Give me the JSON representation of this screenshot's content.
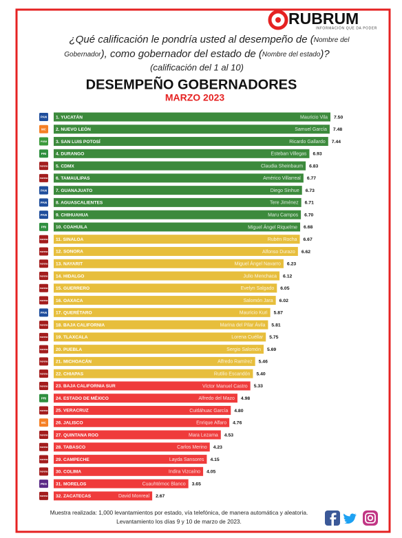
{
  "header": {
    "logo": {
      "name": "RUBRUM",
      "tagline": "INFORMACIÓN QUE DA PODER"
    },
    "question_lines": [
      [
        "¿Qué calificación le pondría usted al desempeño de (",
        "Nombre del"
      ],
      [
        "Gobernador",
        "), como gobernador del estado de (",
        "Nombre del estado",
        ")?"
      ]
    ],
    "scale_note": "(calificación del 1 al 10)"
  },
  "chart_data": {
    "type": "bar",
    "orientation": "horizontal",
    "title": "DESEMPEÑO GOBERNADORES",
    "subtitle": "MARZO 2023",
    "categories": [
      "1. YUCATÁN",
      "2. NUEVO LEÓN",
      "3. SAN LUIS POTOSÍ",
      "4. DURANGO",
      "5. CDMX",
      "6. TAMAULIPAS",
      "7. GUANAJUATO",
      "8. AGUASCALIENTES",
      "9. CHIHUAHUA",
      "10. COAHUILA",
      "11. SINALOA",
      "12. SONORA",
      "13. NAYARIT",
      "14. HIDALGO",
      "15. GUERRERO",
      "16. OAXACA",
      "17. QUERÉTARO",
      "18. BAJA CALIFORNIA",
      "19. TLAXCALA",
      "20. PUEBLA",
      "21. MICHOACÁN",
      "22. CHIAPAS",
      "23. BAJA CALIFORNIA SUR",
      "24. ESTADO DE MÉXICO",
      "25. VERACRUZ",
      "26. JALISCO",
      "27. QUINTANA ROO",
      "28. TABASCO",
      "29. CAMPECHE",
      "30. COLIMA",
      "31. MORELOS",
      "32. ZACATECAS"
    ],
    "governors": [
      "Mauricio Vila",
      "Samuel García",
      "Ricardo Gallardo",
      "Esteban Villegas",
      "Claudia Sheinbaum",
      "Américo Villarreal",
      "Diego Sinhue",
      "Tere Jiménez",
      "Maru Campos",
      "Miguel Ángel Riquelme",
      "Rubén Rocha",
      "Alfonso Durazo",
      "Miguel Ángel Navarro",
      "Julio Menchaca",
      "Evelyn Salgado",
      "Salomón Jara",
      "Mauricio Kuri",
      "Marina del Pilar Ávila",
      "Lorena Cuéllar",
      "Sergio Salomón",
      "Alfredo Ramírez",
      "Rutilio Escandón",
      "Víctor Manuel Castro",
      "Alfredo del Mazo",
      "Cuitláhuac García",
      "Enrique Alfaro",
      "Mara Lezama",
      "Carlos Merino",
      "Layda Sansores",
      "Indira Vizcaíno",
      "Cuauhtémoc Blanco",
      "David Monreal"
    ],
    "parties": [
      "PAN",
      "MC",
      "PVEM",
      "PRI",
      "morena",
      "morena",
      "PAN",
      "PAN",
      "PAN",
      "PRI",
      "morena",
      "morena",
      "morena",
      "morena",
      "morena",
      "morena",
      "PAN",
      "morena",
      "morena",
      "morena",
      "morena",
      "morena",
      "morena",
      "PRI",
      "morena",
      "MC",
      "morena",
      "morena",
      "morena",
      "morena",
      "PES",
      "morena"
    ],
    "party_colors": {
      "PAN": "#1f4e9c",
      "MC": "#f58025",
      "PVEM": "#3b9a3b",
      "PRI": "#2f8f3f",
      "morena": "#a31d1d",
      "PES": "#5b2a86"
    },
    "values": [
      7.5,
      7.48,
      7.44,
      6.93,
      6.83,
      6.77,
      6.73,
      6.71,
      6.7,
      6.68,
      6.67,
      6.62,
      6.23,
      6.12,
      6.05,
      6.02,
      5.87,
      5.81,
      5.75,
      5.69,
      5.46,
      5.4,
      5.33,
      4.98,
      4.8,
      4.76,
      4.53,
      4.23,
      4.15,
      4.05,
      3.65,
      2.67
    ],
    "value_labels": [
      "7.50",
      "7.48",
      "7.44",
      "6.93",
      "6.83",
      "6.77",
      "6.73",
      "6.71",
      "6.70",
      "6.68",
      "6.67",
      "6.62",
      "6.23",
      "6.12",
      "6.05",
      "6.02",
      "5.87",
      "5.81",
      "5.75",
      "5.69",
      "5.46",
      "5.40",
      "5.33",
      "4.98",
      "4.80",
      "4.76",
      "4.53",
      "4.23",
      "4.15",
      "4.05",
      "3.65",
      "2.67"
    ],
    "colors": [
      "#3c8a3c",
      "#3c8a3c",
      "#3c8a3c",
      "#3c8a3c",
      "#3c8a3c",
      "#3c8a3c",
      "#3c8a3c",
      "#3c8a3c",
      "#3c8a3c",
      "#3c8a3c",
      "#e7be3c",
      "#e7be3c",
      "#e7be3c",
      "#e7be3c",
      "#e7be3c",
      "#e7be3c",
      "#e7be3c",
      "#e7be3c",
      "#e7be3c",
      "#e7be3c",
      "#e7be3c",
      "#e7be3c",
      "#ef3b3b",
      "#ef3b3b",
      "#ef3b3b",
      "#ef3b3b",
      "#ef3b3b",
      "#ef3b3b",
      "#ef3b3b",
      "#ef3b3b",
      "#ef3b3b",
      "#ef3b3b"
    ]
  },
  "footer": {
    "lines": [
      "Muestra realizada: 1,000 levantamientos por estado, vía telefónica, de manera automática y aleatoria.",
      "Levantamiento los días 9 y 10 de marzo de 2023."
    ]
  }
}
